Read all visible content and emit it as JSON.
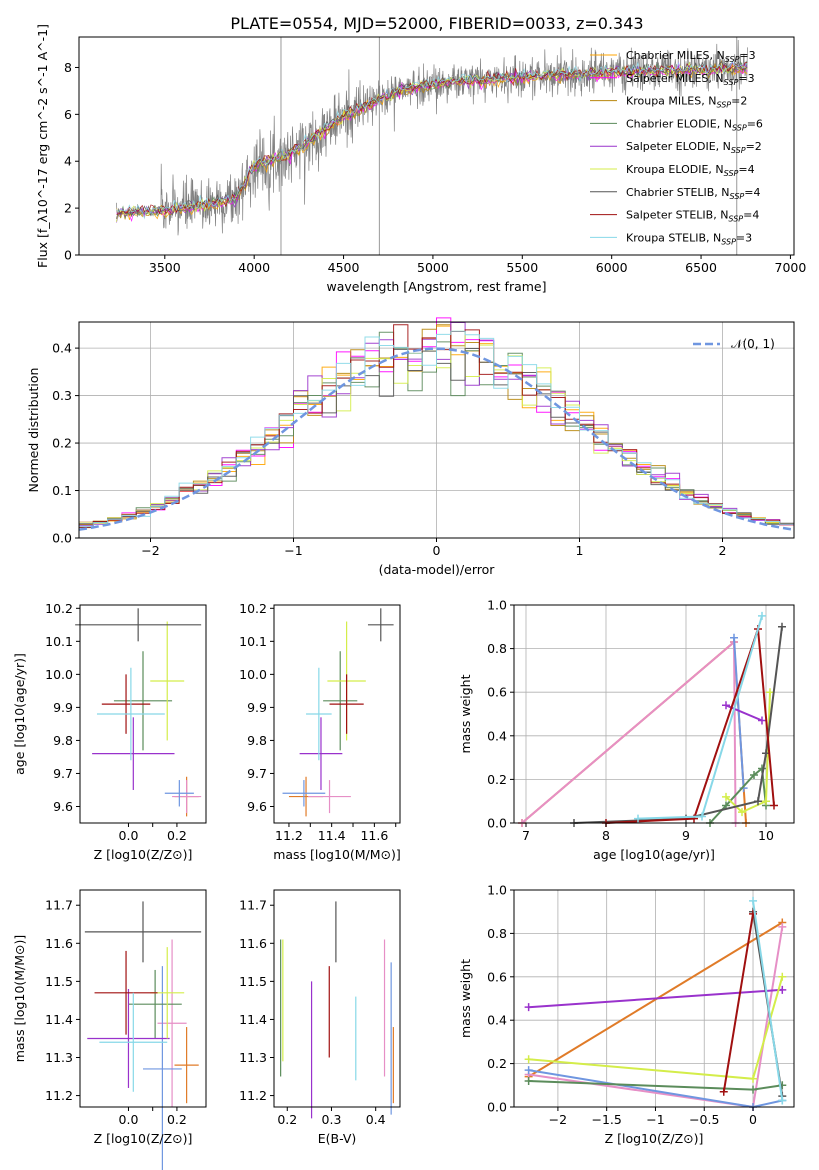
{
  "figure": {
    "title": "PLATE=0554, MJD=52000, FIBERID=0033, z=0.343"
  },
  "models": [
    {
      "name": "Chabrier MILES",
      "nssp": "3",
      "color": "#ffa500"
    },
    {
      "name": "Salpeter MILES",
      "nssp": "3",
      "color": "#ff00ff"
    },
    {
      "name": "Kroupa MILES",
      "nssp": "2",
      "color": "#b8860b"
    },
    {
      "name": "Chabrier ELODIE",
      "nssp": "6",
      "color": "#5a8a5a"
    },
    {
      "name": "Salpeter ELODIE",
      "nssp": "2",
      "color": "#9932cc"
    },
    {
      "name": "Kroupa ELODIE",
      "nssp": "4",
      "color": "#d4ed4a"
    },
    {
      "name": "Chabrier STELIB",
      "nssp": "4",
      "color": "#555555"
    },
    {
      "name": "Salpeter STELIB",
      "nssp": "4",
      "color": "#a01010"
    },
    {
      "name": "Kroupa STELIB",
      "nssp": "3",
      "color": "#87d8e8"
    }
  ],
  "panel_colors": [
    "#e07b28",
    "#e68fc6",
    "#6f96e0",
    "#5b8c5b",
    "#9932cc",
    "#d4ed4a",
    "#555555",
    "#a01010",
    "#87d8e8"
  ],
  "chart_data": [
    {
      "id": "spectrum",
      "type": "line",
      "xlabel": "wavelength [Angstrom, rest frame]",
      "ylabel": "Flux [f_λ10^-17 erg cm^-2 s^-1 A^-1]",
      "xlim": [
        3020,
        7020
      ],
      "ylim": [
        0,
        9.3
      ],
      "xticks": [
        3500,
        4000,
        4500,
        5000,
        5500,
        6000,
        6500,
        7000
      ],
      "yticks": [
        0,
        2,
        4,
        6,
        8
      ],
      "data_range": [
        3230,
        6760
      ],
      "continuum": [
        {
          "x": 3230,
          "y": 1.8
        },
        {
          "x": 3500,
          "y": 1.9
        },
        {
          "x": 3700,
          "y": 2.1
        },
        {
          "x": 3900,
          "y": 2.4
        },
        {
          "x": 4000,
          "y": 3.8
        },
        {
          "x": 4200,
          "y": 4.3
        },
        {
          "x": 4500,
          "y": 5.9
        },
        {
          "x": 4800,
          "y": 7.0
        },
        {
          "x": 5000,
          "y": 7.3
        },
        {
          "x": 5500,
          "y": 7.6
        },
        {
          "x": 6000,
          "y": 7.8
        },
        {
          "x": 6500,
          "y": 7.9
        },
        {
          "x": 6760,
          "y": 8.0
        }
      ],
      "spikes": [
        4150,
        4700,
        6700
      ]
    },
    {
      "id": "residuals",
      "type": "step",
      "xlabel": "(data-model)/error",
      "ylabel": "Normed distribution",
      "xlim": [
        -2.5,
        2.5
      ],
      "ylim": [
        0,
        0.455
      ],
      "xticks": [
        -2,
        -1,
        0,
        1,
        2
      ],
      "yticks": [
        0.0,
        0.1,
        0.2,
        0.3,
        0.4
      ],
      "legend": {
        "label": "𝒩(0, 1)",
        "position": "upper right",
        "color": "#6f96e0"
      },
      "bin_width": 0.1,
      "grid": true
    },
    {
      "id": "Z_vs_age",
      "type": "errorbar",
      "xlabel": "Z [log10(Z/Z⊙)]",
      "ylabel": "age  [log10(age/yr)]",
      "xlim": [
        -0.2,
        0.32
      ],
      "ylim": [
        9.55,
        10.21
      ],
      "xticks": [
        0.0,
        0.1,
        0.2
      ],
      "xtick_labels": [
        "0.0",
        "",
        "0.2"
      ],
      "yticks": [
        9.6,
        9.7,
        9.8,
        9.9,
        10.0,
        10.1,
        10.2
      ],
      "points": [
        {
          "x": 0.24,
          "xerr": 0.05,
          "y": 9.63,
          "yerr": 0.06
        },
        {
          "x": 0.24,
          "xerr": 0.06,
          "y": 9.63,
          "yerr": 0.05
        },
        {
          "x": 0.21,
          "xerr": 0.06,
          "y": 9.64,
          "yerr": 0.04
        },
        {
          "x": 0.06,
          "xerr": 0.12,
          "y": 9.92,
          "yerr": 0.15
        },
        {
          "x": 0.02,
          "xerr": 0.17,
          "y": 9.76,
          "yerr": 0.11
        },
        {
          "x": 0.16,
          "xerr": 0.07,
          "y": 9.98,
          "yerr": 0.18
        },
        {
          "x": 0.04,
          "xerr": 0.26,
          "y": 10.15,
          "yerr": 0.05
        },
        {
          "x": -0.01,
          "xerr": 0.1,
          "y": 9.91,
          "yerr": 0.09
        },
        {
          "x": 0.01,
          "xerr": 0.14,
          "y": 9.88,
          "yerr": 0.14
        }
      ]
    },
    {
      "id": "mass_vs_age",
      "type": "errorbar",
      "xlabel": "mass [log10(M/M⊙)]",
      "ylabel": "",
      "xlim": [
        11.13,
        11.72
      ],
      "ylim": [
        9.55,
        10.21
      ],
      "xticks": [
        11.2,
        11.3,
        11.4,
        11.5,
        11.6,
        11.7
      ],
      "xtick_labels": [
        "11.2",
        "",
        "11.4",
        "",
        "11.6",
        ""
      ],
      "yticks": [
        9.6,
        9.7,
        9.8,
        9.9,
        10.0,
        10.1,
        10.2
      ],
      "points": [
        {
          "x": 11.28,
          "xerr": 0.08,
          "y": 9.63,
          "yerr": 0.06
        },
        {
          "x": 11.39,
          "xerr": 0.1,
          "y": 9.63,
          "yerr": 0.05
        },
        {
          "x": 11.27,
          "xerr": 0.1,
          "y": 9.64,
          "yerr": 0.04
        },
        {
          "x": 11.44,
          "xerr": 0.08,
          "y": 9.92,
          "yerr": 0.15
        },
        {
          "x": 11.35,
          "xerr": 0.1,
          "y": 9.76,
          "yerr": 0.11
        },
        {
          "x": 11.47,
          "xerr": 0.09,
          "y": 9.98,
          "yerr": 0.18
        },
        {
          "x": 11.63,
          "xerr": 0.06,
          "y": 10.15,
          "yerr": 0.05
        },
        {
          "x": 11.47,
          "xerr": 0.08,
          "y": 9.91,
          "yerr": 0.09
        },
        {
          "x": 11.34,
          "xerr": 0.06,
          "y": 9.88,
          "yerr": 0.14
        }
      ]
    },
    {
      "id": "age_vs_weight",
      "type": "line",
      "xlabel": "age  [log10(age/yr)]",
      "ylabel": "mass weight",
      "xlim": [
        6.85,
        10.35
      ],
      "ylim": [
        0,
        1.0
      ],
      "xticks": [
        7,
        8,
        9,
        10
      ],
      "yticks": [
        0.0,
        0.2,
        0.4,
        0.6,
        0.8,
        1.0
      ],
      "series": [
        {
          "points": [
            [
              6.95,
              0.0
            ],
            [
              9.6,
              0.83
            ],
            [
              9.75,
              0.0
            ]
          ]
        },
        {
          "points": [
            [
              6.95,
              0.0
            ],
            [
              9.6,
              0.83
            ],
            [
              9.62,
              0.0
            ]
          ]
        },
        {
          "points": [
            [
              9.6,
              0.85
            ],
            [
              9.72,
              0.16
            ]
          ]
        },
        {
          "points": [
            [
              9.3,
              0.0
            ],
            [
              9.5,
              0.08
            ],
            [
              9.85,
              0.22
            ],
            [
              9.95,
              0.25
            ],
            [
              10.0,
              0.08
            ]
          ]
        },
        {
          "points": [
            [
              9.5,
              0.54
            ],
            [
              9.95,
              0.47
            ]
          ]
        },
        {
          "points": [
            [
              9.5,
              0.12
            ],
            [
              9.7,
              0.05
            ],
            [
              10.0,
              0.1
            ],
            [
              10.05,
              0.6
            ]
          ]
        },
        {
          "points": [
            [
              7.6,
              0.0
            ],
            [
              9.0,
              0.02
            ],
            [
              9.9,
              0.1
            ],
            [
              10.0,
              0.32
            ],
            [
              10.2,
              0.9
            ]
          ]
        },
        {
          "points": [
            [
              8.0,
              0.0
            ],
            [
              9.1,
              0.02
            ],
            [
              9.9,
              0.89
            ],
            [
              10.1,
              0.08
            ]
          ]
        },
        {
          "points": [
            [
              8.4,
              0.02
            ],
            [
              9.2,
              0.03
            ],
            [
              9.95,
              0.95
            ]
          ]
        }
      ]
    },
    {
      "id": "Z_vs_mass",
      "type": "errorbar",
      "xlabel": "Z [log10(Z/Z⊙)]",
      "ylabel": "mass [log10(M/M⊙)]",
      "xlim": [
        -0.2,
        0.32
      ],
      "ylim": [
        11.17,
        11.74
      ],
      "xticks": [
        0.0,
        0.1,
        0.2
      ],
      "xtick_labels": [
        "0.0",
        "",
        "0.2"
      ],
      "yticks": [
        11.2,
        11.3,
        11.4,
        11.5,
        11.6,
        11.7
      ],
      "points": [
        {
          "x": 0.24,
          "xerr": 0.05,
          "y": 11.28,
          "yerr": 0.1
        },
        {
          "x": 0.18,
          "xerr": 0.06,
          "y": 11.39,
          "yerr": 0.22
        },
        {
          "x": 0.14,
          "xerr": 0.08,
          "y": 11.27,
          "yerr": 0.27
        },
        {
          "x": 0.11,
          "xerr": 0.11,
          "y": 11.44,
          "yerr": 0.09
        },
        {
          "x": 0.0,
          "xerr": 0.17,
          "y": 11.35,
          "yerr": 0.13
        },
        {
          "x": 0.16,
          "xerr": 0.07,
          "y": 11.47,
          "yerr": 0.12
        },
        {
          "x": 0.06,
          "xerr": 0.24,
          "y": 11.63,
          "yerr": 0.08
        },
        {
          "x": -0.01,
          "xerr": 0.13,
          "y": 11.47,
          "yerr": 0.11
        },
        {
          "x": 0.02,
          "xerr": 0.14,
          "y": 11.34,
          "yerr": 0.13
        }
      ]
    },
    {
      "id": "ebv_vs_mass",
      "type": "errorbar",
      "xlabel": "E(B-V)",
      "ylabel": "",
      "xlim": [
        0.17,
        0.455
      ],
      "ylim": [
        11.17,
        11.74
      ],
      "xticks": [
        0.2,
        0.3,
        0.4
      ],
      "yticks": [
        11.2,
        11.3,
        11.4,
        11.5,
        11.6,
        11.7
      ],
      "points": [
        {
          "x": 0.44,
          "xerr": 0.0,
          "y": 11.28,
          "yerr": 0.1
        },
        {
          "x": 0.42,
          "xerr": 0.0,
          "y": 11.43,
          "yerr": 0.18
        },
        {
          "x": 0.435,
          "xerr": 0.0,
          "y": 11.35,
          "yerr": 0.2
        },
        {
          "x": 0.185,
          "xerr": 0.0,
          "y": 11.43,
          "yerr": 0.18
        },
        {
          "x": 0.255,
          "xerr": 0.0,
          "y": 11.32,
          "yerr": 0.18
        },
        {
          "x": 0.19,
          "xerr": 0.0,
          "y": 11.45,
          "yerr": 0.16
        },
        {
          "x": 0.31,
          "xerr": 0.0,
          "y": 11.63,
          "yerr": 0.08
        },
        {
          "x": 0.295,
          "xerr": 0.0,
          "y": 11.42,
          "yerr": 0.12
        },
        {
          "x": 0.355,
          "xerr": 0.0,
          "y": 11.35,
          "yerr": 0.11
        }
      ]
    },
    {
      "id": "Z_vs_weight",
      "type": "line",
      "xlabel": "Z [log10(Z/Z⊙)]",
      "ylabel": "mass weight",
      "xlim": [
        -2.45,
        0.42
      ],
      "ylim": [
        0,
        1.0
      ],
      "xticks": [
        -2.0,
        -1.5,
        -1.0,
        -0.5,
        0.0
      ],
      "yticks": [
        0.0,
        0.2,
        0.4,
        0.6,
        0.8,
        1.0
      ],
      "series": [
        {
          "points": [
            [
              -2.3,
              0.14
            ],
            [
              0.3,
              0.85
            ]
          ]
        },
        {
          "points": [
            [
              -2.3,
              0.15
            ],
            [
              0.0,
              0.0
            ],
            [
              0.3,
              0.83
            ]
          ]
        },
        {
          "points": [
            [
              -2.3,
              0.17
            ],
            [
              0.0,
              0.0
            ],
            [
              0.3,
              0.03
            ]
          ]
        },
        {
          "points": [
            [
              -2.3,
              0.12
            ],
            [
              0.0,
              0.08
            ],
            [
              0.3,
              0.1
            ]
          ]
        },
        {
          "points": [
            [
              -2.3,
              0.46
            ],
            [
              0.3,
              0.54
            ]
          ]
        },
        {
          "points": [
            [
              -2.3,
              0.22
            ],
            [
              0.0,
              0.13
            ],
            [
              0.3,
              0.6
            ]
          ]
        },
        {
          "points": [
            [
              0.0,
              0.9
            ],
            [
              0.3,
              0.05
            ]
          ]
        },
        {
          "points": [
            [
              -0.3,
              0.07
            ],
            [
              0.0,
              0.89
            ]
          ]
        },
        {
          "points": [
            [
              0.0,
              0.95
            ],
            [
              0.3,
              0.03
            ]
          ]
        }
      ]
    }
  ]
}
